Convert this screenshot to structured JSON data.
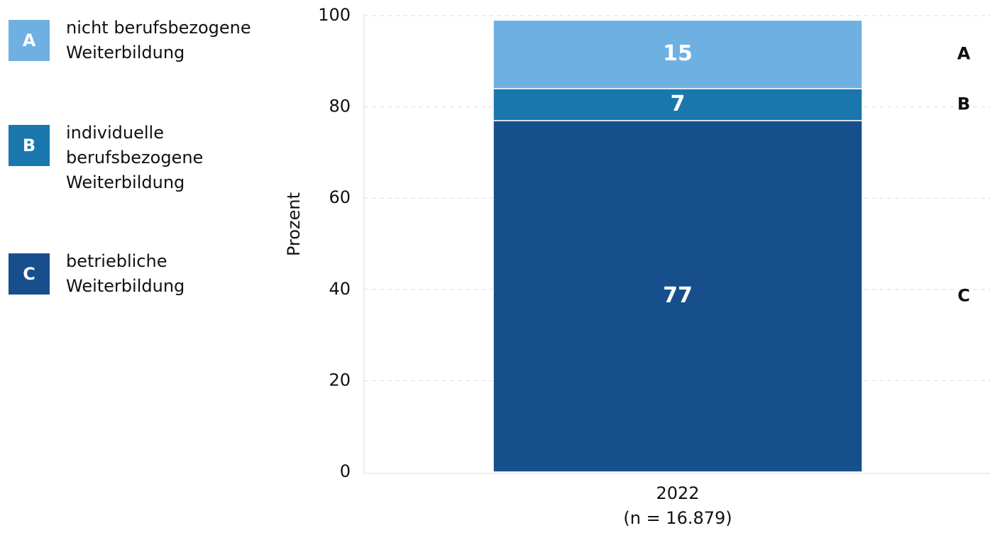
{
  "chart_data": {
    "type": "stacked-bar",
    "y_label": "Prozent",
    "categories": [
      "2022"
    ],
    "category_notes": [
      "(n = 16.879)"
    ],
    "series": [
      {
        "label": "A",
        "name": "nicht berufsbezogene Weiterbildung",
        "color": "#6fb0e3",
        "values": [
          15
        ]
      },
      {
        "label": "B",
        "name": "individuelle berufsbezogene Weiterbildung",
        "color": "#1a77ad",
        "values": [
          7
        ]
      },
      {
        "label": "C",
        "name": "betriebliche Weiterbildung",
        "color": "#174f8c",
        "values": [
          77
        ]
      }
    ],
    "stack_from": "bottom-last",
    "ylim": [
      0,
      100
    ],
    "yticks": [
      0,
      20,
      40,
      60,
      80,
      100
    ],
    "grid": true
  }
}
